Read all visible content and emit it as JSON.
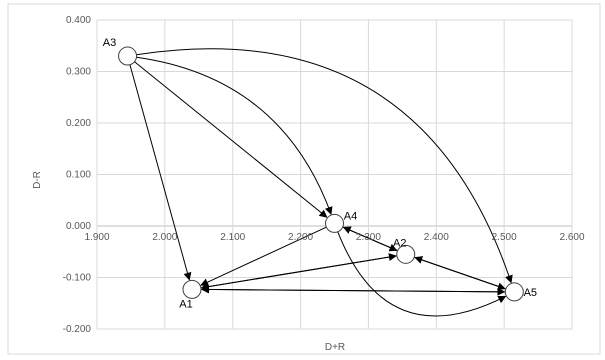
{
  "chart_data": {
    "type": "scatter",
    "title": "",
    "xlabel": "D+R",
    "ylabel": "D-R",
    "xlim": [
      1.9,
      2.6
    ],
    "ylim": [
      -0.2,
      0.4
    ],
    "x_ticks": [
      "1.900",
      "2.000",
      "2.100",
      "2.200",
      "2.300",
      "2.400",
      "2.500",
      "2.600"
    ],
    "y_ticks": [
      "-0.200",
      "-0.100",
      "0.000",
      "0.100",
      "0.200",
      "0.300",
      "0.400"
    ],
    "grid": true,
    "nodes": [
      {
        "name": "A1",
        "x": 2.04,
        "y": -0.123
      },
      {
        "name": "A2",
        "x": 2.355,
        "y": -0.055
      },
      {
        "name": "A3",
        "x": 1.945,
        "y": 0.33
      },
      {
        "name": "A4",
        "x": 2.25,
        "y": 0.005
      },
      {
        "name": "A5",
        "x": 2.515,
        "y": -0.128
      }
    ],
    "edges": [
      {
        "from": "A3",
        "to": "A1"
      },
      {
        "from": "A3",
        "to": "A4"
      },
      {
        "from": "A3",
        "to": "A4",
        "curved": true
      },
      {
        "from": "A3",
        "to": "A5",
        "curved": true
      },
      {
        "from": "A4",
        "to": "A1"
      },
      {
        "from": "A4",
        "to": "A2"
      },
      {
        "from": "A2",
        "to": "A4"
      },
      {
        "from": "A4",
        "to": "A5",
        "curved": true
      },
      {
        "from": "A2",
        "to": "A1"
      },
      {
        "from": "A1",
        "to": "A2"
      },
      {
        "from": "A2",
        "to": "A5"
      },
      {
        "from": "A5",
        "to": "A2"
      },
      {
        "from": "A5",
        "to": "A1"
      },
      {
        "from": "A1",
        "to": "A5"
      }
    ]
  }
}
